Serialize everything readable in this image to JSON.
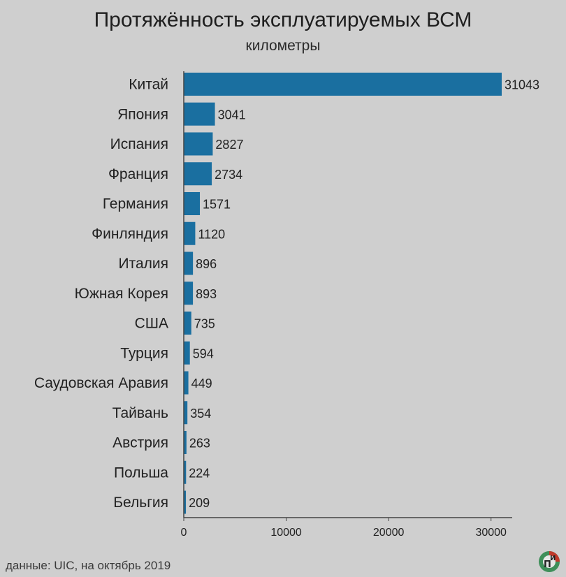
{
  "chart_data": {
    "type": "bar",
    "orientation": "horizontal",
    "title": "Протяжённость эксплуатируемых ВСМ",
    "subtitle": "километры",
    "categories": [
      "Китай",
      "Япония",
      "Испания",
      "Франция",
      "Германия",
      "Финляндия",
      "Италия",
      "Южная Корея",
      "США",
      "Турция",
      "Саудовская Аравия",
      "Тайвань",
      "Австрия",
      "Польша",
      "Бельгия"
    ],
    "values": [
      31043,
      3041,
      2827,
      2734,
      1571,
      1120,
      896,
      893,
      735,
      594,
      449,
      354,
      263,
      224,
      209
    ],
    "xlim": [
      0,
      32000
    ],
    "xticks": [
      0,
      10000,
      20000,
      30000
    ],
    "bar_color": "#1a6fa0",
    "grid": false
  },
  "source": "данные: UIC, на октябрь 2019",
  "colors": {
    "background": "#cfcfcf",
    "bar": "#1a6fa0",
    "axis": "#444444",
    "logo_green": "#3f8f5a",
    "logo_red": "#c0392b"
  }
}
